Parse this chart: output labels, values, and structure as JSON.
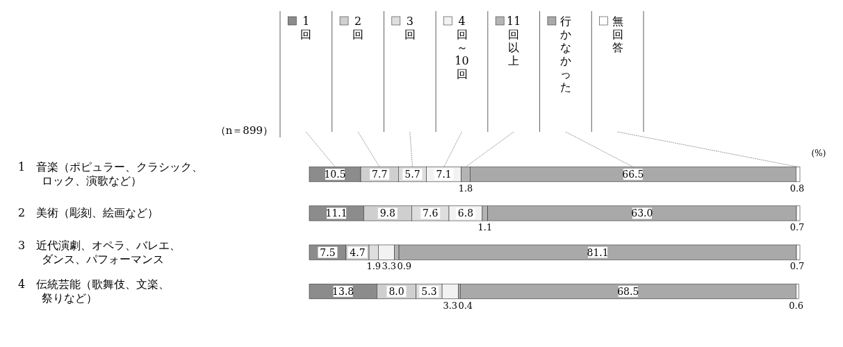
{
  "chart_data": {
    "type": "bar",
    "orientation": "horizontal",
    "stacked": true,
    "data_labels": true,
    "legend": "top",
    "categories": [
      "1　音楽（ポピュラー、クラシック、ロック、演歌など）",
      "2　美術（彫刻、絵画など）",
      "3　近代演劇、オペラ、バレエ、ダンス、パフォーマンス",
      "4　伝統芸能（歌舞伎、文楽、祭りなど）"
    ],
    "series": [
      {
        "name": "1回",
        "color": "#8c8c8c",
        "values": [
          10.5,
          11.1,
          7.5,
          13.8
        ],
        "value_labels": [
          "10.5",
          "11.1",
          "7.5",
          "13.8"
        ]
      },
      {
        "name": "2回",
        "color": "#cfcfcf",
        "values": [
          7.7,
          9.8,
          4.7,
          8.0
        ],
        "value_labels": [
          "7.7",
          "9.8",
          "4.7",
          "8.0"
        ]
      },
      {
        "name": "3回",
        "color": "#dedede",
        "values": [
          5.7,
          7.6,
          1.9,
          5.3
        ],
        "value_labels": [
          "5.7",
          "7.6",
          "1.9",
          "5.3"
        ]
      },
      {
        "name": "4回～10回",
        "color": "#f2f2f2",
        "values": [
          7.1,
          6.8,
          3.3,
          3.3
        ],
        "value_labels": [
          "7.1",
          "6.8",
          "3.3",
          "3.3"
        ]
      },
      {
        "name": "11回以上",
        "color": "#b4b4b4",
        "values": [
          1.8,
          1.1,
          0.9,
          0.4
        ],
        "value_labels": [
          "1.8",
          "1.1",
          "0.9",
          "0.4"
        ]
      },
      {
        "name": "行かなかった",
        "color": "#a9a9a9",
        "values": [
          66.5,
          63.0,
          81.1,
          68.5
        ],
        "value_labels": [
          "66.5",
          "63.0",
          "81.1",
          "68.5"
        ]
      },
      {
        "name": "無回答",
        "color": "#ffffff",
        "values": [
          0.8,
          0.7,
          0.7,
          0.6
        ],
        "value_labels": [
          "0.8",
          "0.7",
          "0.7",
          "0.6"
        ]
      }
    ],
    "annotations": [
      "（n＝899）",
      "(%)"
    ]
  }
}
